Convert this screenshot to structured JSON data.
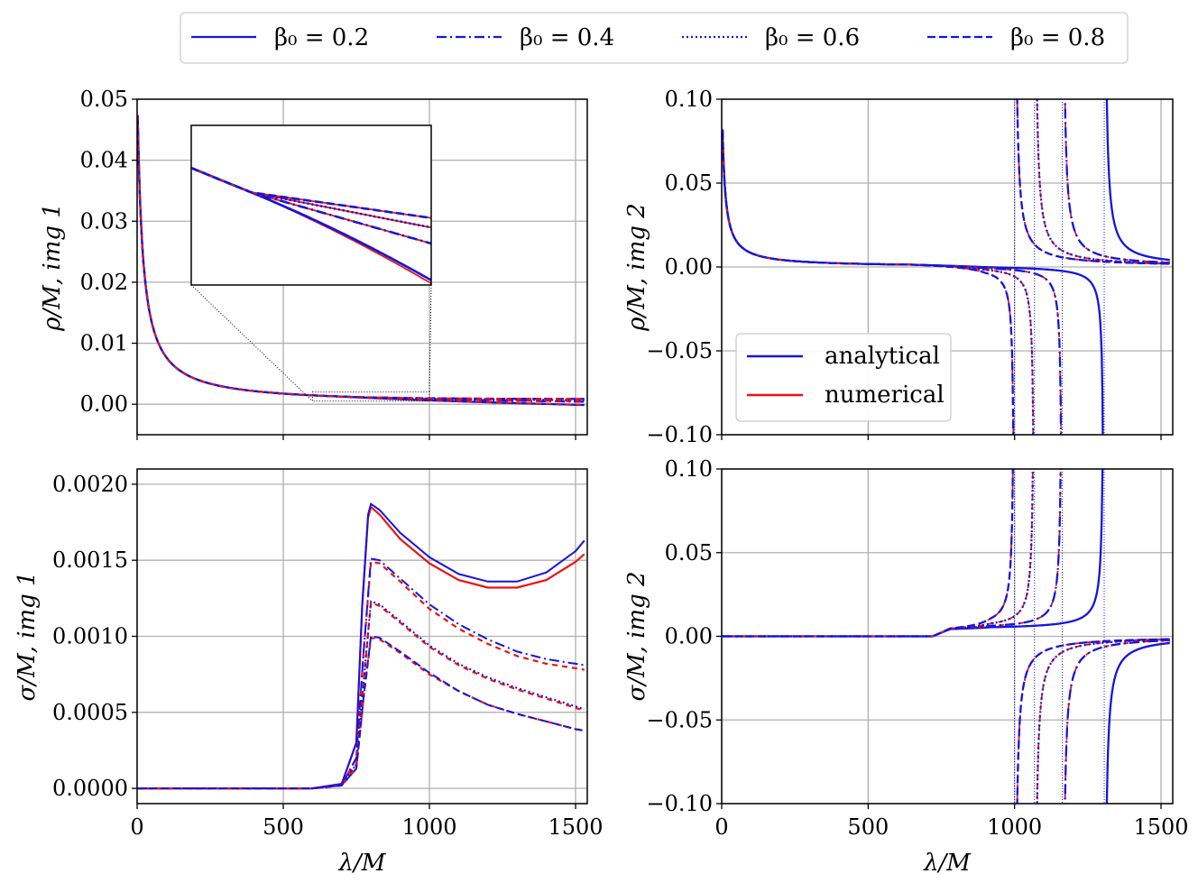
{
  "legend_top": {
    "placement": "top-center",
    "entries": [
      {
        "label": "β₀ = 0.2",
        "dash": "solid"
      },
      {
        "label": "β₀ = 0.4",
        "dash": "dashdot"
      },
      {
        "label": "β₀ = 0.6",
        "dash": "dotted"
      },
      {
        "label": "β₀ = 0.8",
        "dash": "dashed"
      }
    ]
  },
  "legend_inner": {
    "placement": "lower-left",
    "entries": [
      {
        "label": "analytical",
        "color": "#1515dd"
      },
      {
        "label": "numerical",
        "color": "#ee1111"
      }
    ]
  },
  "colors": {
    "analytical": "#1515dd",
    "numerical": "#ee1111",
    "grid": "#b0b0b0"
  },
  "chart_data": [
    {
      "id": "tl",
      "type": "line",
      "ylabel": "ρ/M, img 1",
      "xlabel": "",
      "xlim": [
        0,
        1540
      ],
      "ylim": [
        -0.005,
        0.05
      ],
      "xticks": [
        0,
        500,
        1000,
        1500
      ],
      "xtick_labels": [
        "",
        "",
        "",
        ""
      ],
      "yticks": [
        0,
        0.01,
        0.02,
        0.03,
        0.04,
        0.05
      ],
      "ytick_labels": [
        "0.00",
        "0.01",
        "0.02",
        "0.03",
        "0.04",
        "0.05"
      ],
      "grid": true,
      "inset": {
        "xlim": [
          600,
          1000
        ],
        "ylim": [
          0.0005,
          0.002
        ]
      }
    },
    {
      "id": "tr",
      "type": "line",
      "ylabel": "ρ/M, img 2",
      "xlabel": "",
      "xlim": [
        0,
        1540
      ],
      "ylim": [
        -0.1,
        0.1
      ],
      "xticks": [
        0,
        500,
        1000,
        1500
      ],
      "xtick_labels": [
        "",
        "",
        "",
        ""
      ],
      "yticks": [
        -0.1,
        -0.05,
        0,
        0.05,
        0.1
      ],
      "ytick_labels": [
        "−0.10",
        "−0.05",
        "0.00",
        "0.05",
        "0.10"
      ],
      "grid": true,
      "asymptotes": [
        1000,
        1068,
        1163,
        1306
      ]
    },
    {
      "id": "bl",
      "type": "line",
      "ylabel": "σ/M, img 1",
      "xlabel": "λ/M",
      "xlim": [
        0,
        1540
      ],
      "ylim": [
        -0.0001,
        0.0021
      ],
      "xticks": [
        0,
        500,
        1000,
        1500
      ],
      "xtick_labels": [
        "0",
        "500",
        "1000",
        "1500"
      ],
      "yticks": [
        0,
        0.0005,
        0.001,
        0.0015,
        0.002
      ],
      "ytick_labels": [
        "0.0000",
        "0.0005",
        "0.0010",
        "0.0015",
        "0.0020"
      ],
      "grid": true,
      "series": [
        {
          "beta": 0.2,
          "dash": "solid",
          "analytical": {
            "x": [
              0,
              600,
              700,
              750,
              770,
              790,
              800,
              830,
              900,
              1000,
              1100,
              1200,
              1300,
              1400,
              1500,
              1530
            ],
            "y": [
              0,
              0,
              3e-05,
              0.0003,
              0.0012,
              0.0018,
              0.00187,
              0.00183,
              0.00168,
              0.00152,
              0.00141,
              0.00136,
              0.00136,
              0.00142,
              0.00156,
              0.00163
            ]
          },
          "numerical": {
            "x": [
              0,
              600,
              700,
              750,
              770,
              790,
              800,
              830,
              900,
              1000,
              1100,
              1200,
              1300,
              1400,
              1500,
              1530
            ],
            "y": [
              0,
              0,
              3e-05,
              0.0003,
              0.0012,
              0.00178,
              0.00185,
              0.0018,
              0.00164,
              0.00148,
              0.00137,
              0.00132,
              0.00132,
              0.00137,
              0.00149,
              0.00154
            ]
          }
        },
        {
          "beta": 0.4,
          "dash": "dashdot",
          "analytical": {
            "x": [
              0,
              600,
              700,
              750,
              775,
              800,
              830,
              900,
              1000,
              1100,
              1200,
              1300,
              1400,
              1500,
              1530
            ],
            "y": [
              0,
              0,
              2e-05,
              0.0002,
              0.0009,
              0.00151,
              0.0015,
              0.00138,
              0.00121,
              0.00108,
              0.00098,
              0.0009,
              0.00085,
              0.00082,
              0.00081
            ]
          },
          "numerical": {
            "x": [
              0,
              600,
              700,
              750,
              775,
              800,
              830,
              900,
              1000,
              1100,
              1200,
              1300,
              1400,
              1500,
              1530
            ],
            "y": [
              0,
              0,
              2e-05,
              0.0002,
              0.0009,
              0.00149,
              0.00148,
              0.00136,
              0.00118,
              0.00105,
              0.00095,
              0.00087,
              0.00082,
              0.00079,
              0.00078
            ]
          }
        },
        {
          "beta": 0.6,
          "dash": "dotted",
          "analytical": {
            "x": [
              0,
              600,
              700,
              750,
              775,
              800,
              830,
              900,
              1000,
              1100,
              1200,
              1300,
              1400,
              1500,
              1530
            ],
            "y": [
              0,
              0,
              2e-05,
              0.00016,
              0.0007,
              0.00123,
              0.00121,
              0.0011,
              0.00094,
              0.00082,
              0.00073,
              0.00066,
              0.0006,
              0.00054,
              0.00052
            ]
          },
          "numerical": {
            "x": [
              0,
              600,
              700,
              750,
              775,
              800,
              830,
              900,
              1000,
              1100,
              1200,
              1300,
              1400,
              1500,
              1530
            ],
            "y": [
              0,
              0,
              2e-05,
              0.00016,
              0.0007,
              0.00122,
              0.0012,
              0.00109,
              0.00093,
              0.00081,
              0.00072,
              0.00065,
              0.00059,
              0.00053,
              0.00051
            ]
          }
        },
        {
          "beta": 0.8,
          "dash": "dashed",
          "analytical": {
            "x": [
              0,
              600,
              700,
              750,
              775,
              800,
              830,
              900,
              1000,
              1100,
              1200,
              1300,
              1400,
              1500,
              1530
            ],
            "y": [
              0,
              0,
              2e-05,
              0.00013,
              0.0006,
              0.001,
              0.00099,
              0.0009,
              0.00076,
              0.00064,
              0.00055,
              0.00049,
              0.00044,
              0.00039,
              0.00038
            ]
          },
          "numerical": {
            "x": [
              0,
              600,
              700,
              750,
              775,
              800,
              830,
              900,
              1000,
              1100,
              1200,
              1300,
              1400,
              1500,
              1530
            ],
            "y": [
              0,
              0,
              2e-05,
              0.00013,
              0.0006,
              0.00099,
              0.00098,
              0.00089,
              0.00075,
              0.00064,
              0.00055,
              0.00049,
              0.00044,
              0.00039,
              0.00038
            ]
          }
        }
      ]
    },
    {
      "id": "br",
      "type": "line",
      "ylabel": "σ/M, img 2",
      "xlabel": "λ/M",
      "xlim": [
        0,
        1540
      ],
      "ylim": [
        -0.1,
        0.1
      ],
      "xticks": [
        0,
        500,
        1000,
        1500
      ],
      "xtick_labels": [
        "0",
        "500",
        "1000",
        "1500"
      ],
      "yticks": [
        -0.1,
        -0.05,
        0,
        0.05,
        0.1
      ],
      "ytick_labels": [
        "−0.10",
        "−0.05",
        "0.00",
        "0.05",
        "0.10"
      ],
      "grid": true,
      "asymptotes": [
        1000,
        1068,
        1163,
        1306
      ]
    }
  ]
}
